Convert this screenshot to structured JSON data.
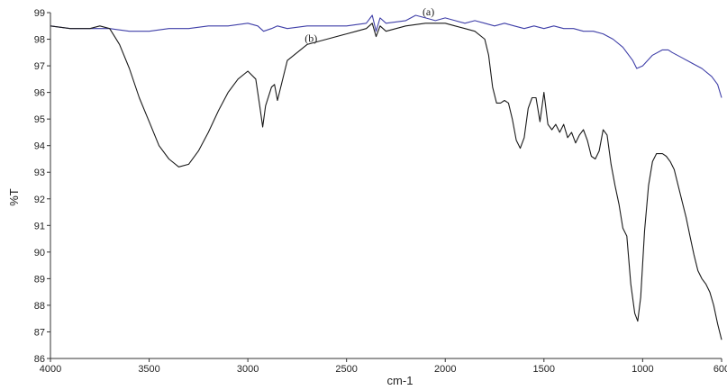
{
  "chart_data": {
    "type": "line",
    "xlabel": "cm-1",
    "ylabel": "%T",
    "xlim": [
      4000,
      600
    ],
    "ylim": [
      86,
      99
    ],
    "x_reversed": true,
    "grid": false,
    "x_ticks": [
      4000,
      3500,
      3000,
      2500,
      2000,
      1500,
      1000,
      600
    ],
    "y_ticks": [
      86,
      87,
      88,
      89,
      90,
      91,
      92,
      93,
      94,
      95,
      96,
      97,
      98,
      99
    ],
    "annotations": [
      {
        "text": "(a)",
        "x": 2085,
        "y": 98.9
      },
      {
        "text": "(b)",
        "x": 2680,
        "y": 97.9
      }
    ],
    "series": [
      {
        "label": "(a)",
        "color": "#3f3fa8",
        "x": [
          4000,
          3900,
          3800,
          3700,
          3600,
          3500,
          3400,
          3300,
          3200,
          3100,
          3000,
          2950,
          2920,
          2880,
          2850,
          2800,
          2700,
          2600,
          2500,
          2400,
          2370,
          2350,
          2330,
          2300,
          2200,
          2150,
          2100,
          2050,
          2000,
          1950,
          1900,
          1850,
          1800,
          1750,
          1700,
          1650,
          1600,
          1550,
          1500,
          1450,
          1400,
          1350,
          1300,
          1250,
          1200,
          1150,
          1100,
          1050,
          1030,
          1000,
          950,
          900,
          870,
          850,
          800,
          750,
          700,
          650,
          620,
          600
        ],
        "y": [
          98.5,
          98.4,
          98.4,
          98.4,
          98.3,
          98.3,
          98.4,
          98.4,
          98.5,
          98.5,
          98.6,
          98.5,
          98.3,
          98.4,
          98.5,
          98.4,
          98.5,
          98.5,
          98.5,
          98.6,
          98.9,
          98.3,
          98.8,
          98.6,
          98.7,
          98.9,
          98.8,
          98.7,
          98.8,
          98.7,
          98.6,
          98.7,
          98.6,
          98.5,
          98.6,
          98.5,
          98.4,
          98.5,
          98.4,
          98.5,
          98.4,
          98.4,
          98.3,
          98.3,
          98.2,
          98.0,
          97.7,
          97.2,
          96.9,
          97.0,
          97.4,
          97.6,
          97.6,
          97.5,
          97.3,
          97.1,
          96.9,
          96.6,
          96.3,
          95.8
        ]
      },
      {
        "label": "(b)",
        "color": "#1a1a1a",
        "x": [
          4000,
          3900,
          3800,
          3750,
          3700,
          3650,
          3600,
          3550,
          3500,
          3450,
          3400,
          3350,
          3300,
          3250,
          3200,
          3150,
          3100,
          3050,
          3000,
          2960,
          2940,
          2925,
          2910,
          2880,
          2865,
          2850,
          2800,
          2700,
          2600,
          2500,
          2450,
          2400,
          2370,
          2350,
          2330,
          2300,
          2200,
          2100,
          2000,
          1950,
          1900,
          1850,
          1800,
          1780,
          1760,
          1740,
          1720,
          1700,
          1680,
          1660,
          1640,
          1620,
          1600,
          1580,
          1560,
          1540,
          1520,
          1500,
          1480,
          1460,
          1440,
          1420,
          1400,
          1380,
          1360,
          1340,
          1320,
          1300,
          1280,
          1260,
          1240,
          1220,
          1200,
          1180,
          1160,
          1140,
          1120,
          1100,
          1080,
          1060,
          1040,
          1025,
          1010,
          990,
          970,
          950,
          930,
          900,
          880,
          860,
          840,
          820,
          800,
          780,
          760,
          740,
          720,
          700,
          680,
          660,
          640,
          620,
          600
        ],
        "y": [
          98.5,
          98.4,
          98.4,
          98.5,
          98.4,
          97.8,
          96.9,
          95.8,
          94.9,
          94.0,
          93.5,
          93.2,
          93.3,
          93.8,
          94.5,
          95.3,
          96.0,
          96.5,
          96.8,
          96.5,
          95.5,
          94.7,
          95.5,
          96.2,
          96.3,
          95.7,
          97.2,
          97.8,
          98.0,
          98.2,
          98.3,
          98.4,
          98.6,
          98.1,
          98.5,
          98.3,
          98.5,
          98.6,
          98.6,
          98.5,
          98.4,
          98.3,
          98.0,
          97.4,
          96.2,
          95.6,
          95.6,
          95.7,
          95.6,
          95.0,
          94.2,
          93.9,
          94.3,
          95.4,
          95.8,
          95.8,
          94.9,
          96.0,
          94.8,
          94.6,
          94.8,
          94.5,
          94.8,
          94.3,
          94.5,
          94.1,
          94.4,
          94.6,
          94.2,
          93.6,
          93.5,
          93.8,
          94.6,
          94.4,
          93.3,
          92.5,
          91.8,
          90.9,
          90.6,
          88.8,
          87.7,
          87.4,
          88.3,
          90.8,
          92.5,
          93.4,
          93.7,
          93.7,
          93.6,
          93.4,
          93.1,
          92.5,
          91.9,
          91.3,
          90.6,
          89.9,
          89.3,
          89.0,
          88.8,
          88.5,
          88.0,
          87.3,
          86.7
        ]
      }
    ]
  }
}
